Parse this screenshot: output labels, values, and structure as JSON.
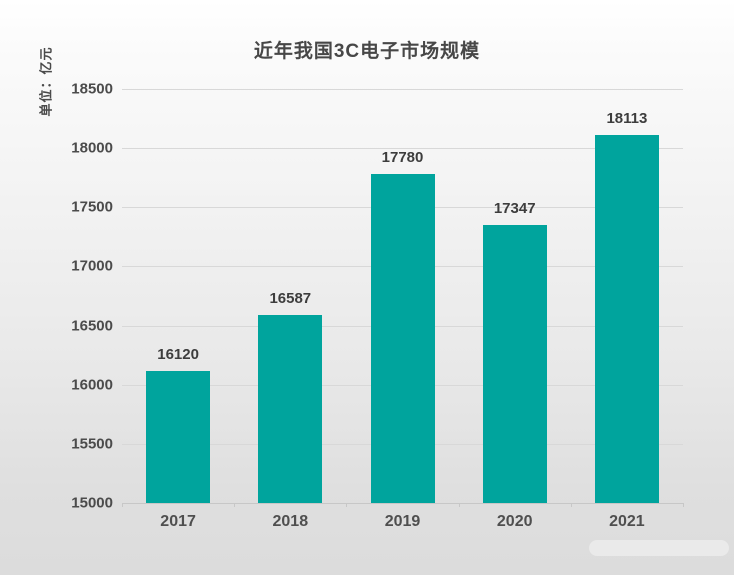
{
  "chart_data": {
    "type": "bar",
    "title": "近年我国3C电子市场规模",
    "unit_label": "单位：亿元",
    "categories": [
      "2017",
      "2018",
      "2019",
      "2020",
      "2021"
    ],
    "values": [
      16120,
      16587,
      17780,
      17347,
      18113
    ],
    "data_labels": [
      "16120",
      "16587",
      "17780",
      "17347",
      "18113"
    ],
    "xlabel": "",
    "ylabel": "单位：亿元",
    "ylim": [
      15000,
      18500
    ],
    "yticks": [
      15000,
      15500,
      16000,
      16500,
      17000,
      17500,
      18000,
      18500
    ],
    "grid": true,
    "legend_position": "none",
    "bar_color": "#00a49d",
    "title_color": "#474747",
    "tick_label_color": "#4b4b4b",
    "value_label_color": "#3d3d3d",
    "gridline_color": "#d8d8d8",
    "background_top": "#ffffff",
    "background_bottom": "#dcdcdc"
  }
}
